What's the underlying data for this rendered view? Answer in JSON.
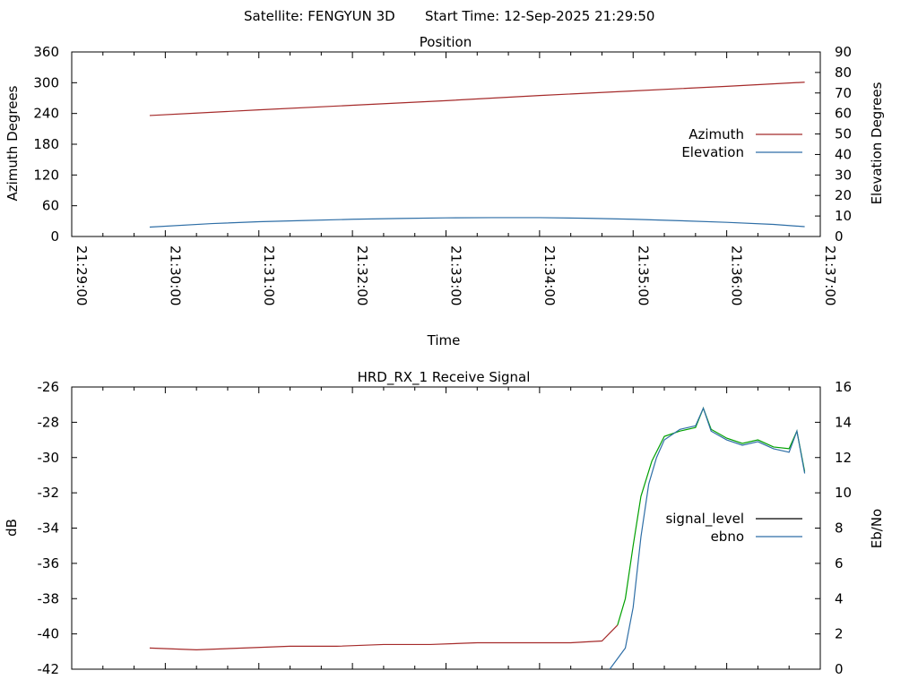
{
  "header": {
    "satellite_label": "Satellite: FENGYUN 3D",
    "start_time_label": "Start Time: 12-Sep-2025 21:29:50"
  },
  "chart_data": [
    {
      "type": "line",
      "title": "Position",
      "xlabel": "Time",
      "ylabel": "Azimuth Degrees",
      "y2label": "Elevation Degrees",
      "xlim": [
        "21:29:00",
        "21:37:00"
      ],
      "ylim": [
        0,
        360
      ],
      "y2lim": [
        0,
        90
      ],
      "yticks": [
        "0",
        "60",
        "120",
        "180",
        "240",
        "300",
        "360"
      ],
      "y2ticks": [
        "0",
        "10",
        "20",
        "30",
        "40",
        "50",
        "60",
        "70",
        "80",
        "90"
      ],
      "xticks": [
        "21:29:00",
        "21:30:00",
        "21:31:00",
        "21:32:00",
        "21:33:00",
        "21:34:00",
        "21:35:00",
        "21:36:00",
        "21:37:00"
      ],
      "legend_position": "right",
      "grid": false,
      "series": [
        {
          "name": "Azimuth",
          "axis": "left",
          "color": "#a52a2a",
          "x": [
            "21:29:50",
            "21:31:00",
            "21:32:00",
            "21:33:00",
            "21:34:00",
            "21:35:00",
            "21:36:00",
            "21:36:50"
          ],
          "values": [
            236,
            247,
            256,
            265,
            275,
            284,
            293,
            301
          ]
        },
        {
          "name": "Elevation",
          "axis": "right",
          "color": "#2e6ea6",
          "x": [
            "21:29:50",
            "21:30:30",
            "21:31:00",
            "21:31:30",
            "21:32:00",
            "21:32:30",
            "21:33:00",
            "21:33:30",
            "21:34:00",
            "21:34:30",
            "21:35:00",
            "21:35:30",
            "21:36:00",
            "21:36:30",
            "21:36:50"
          ],
          "values": [
            4.6,
            6.3,
            7.2,
            7.8,
            8.4,
            8.8,
            9.1,
            9.2,
            9.2,
            8.9,
            8.4,
            7.7,
            6.9,
            5.9,
            4.8
          ]
        }
      ]
    },
    {
      "type": "line",
      "title": "HRD_RX_1 Receive Signal",
      "xlabel": "",
      "ylabel": "dB",
      "y2label": "Eb/No",
      "xlim": [
        "21:29:00",
        "21:37:00"
      ],
      "ylim": [
        -42,
        -26
      ],
      "y2lim": [
        0,
        16
      ],
      "yticks": [
        "-42",
        "-40",
        "-38",
        "-36",
        "-34",
        "-32",
        "-30",
        "-28",
        "-26"
      ],
      "y2ticks": [
        "0",
        "2",
        "4",
        "6",
        "8",
        "10",
        "12",
        "14",
        "16"
      ],
      "legend_position": "right",
      "grid": false,
      "series": [
        {
          "name": "signal_level",
          "axis": "left",
          "color": "#000000",
          "segment_colors": {
            "below_threshold": "#a52a2a",
            "above_threshold": "#00a000"
          },
          "x": [
            "21:29:50",
            "21:30:20",
            "21:30:50",
            "21:31:20",
            "21:31:50",
            "21:32:20",
            "21:32:50",
            "21:33:20",
            "21:33:50",
            "21:34:20",
            "21:34:40",
            "21:34:50",
            "21:34:55",
            "21:35:00",
            "21:35:05",
            "21:35:12",
            "21:35:20",
            "21:35:30",
            "21:35:40",
            "21:35:45",
            "21:35:50",
            "21:36:00",
            "21:36:10",
            "21:36:20",
            "21:36:30",
            "21:36:40",
            "21:36:45",
            "21:36:50"
          ],
          "values": [
            -40.8,
            -40.9,
            -40.8,
            -40.7,
            -40.7,
            -40.6,
            -40.6,
            -40.5,
            -40.5,
            -40.5,
            -40.4,
            -39.5,
            -38.0,
            -35.0,
            -32.2,
            -30.2,
            -28.8,
            -28.5,
            -28.3,
            -27.2,
            -28.4,
            -28.9,
            -29.2,
            -29.0,
            -29.4,
            -29.5,
            -28.5,
            -30.8
          ]
        },
        {
          "name": "ebno",
          "axis": "right",
          "color": "#2e6ea6",
          "x": [
            "21:34:45",
            "21:34:55",
            "21:35:00",
            "21:35:05",
            "21:35:10",
            "21:35:15",
            "21:35:20",
            "21:35:30",
            "21:35:40",
            "21:35:45",
            "21:35:50",
            "21:36:00",
            "21:36:10",
            "21:36:20",
            "21:36:30",
            "21:36:40",
            "21:36:45",
            "21:36:50"
          ],
          "values": [
            0.0,
            1.2,
            3.5,
            7.5,
            10.5,
            12.0,
            13.0,
            13.6,
            13.8,
            14.8,
            13.5,
            13.0,
            12.7,
            12.9,
            12.5,
            12.3,
            13.5,
            11.1
          ]
        }
      ]
    }
  ]
}
